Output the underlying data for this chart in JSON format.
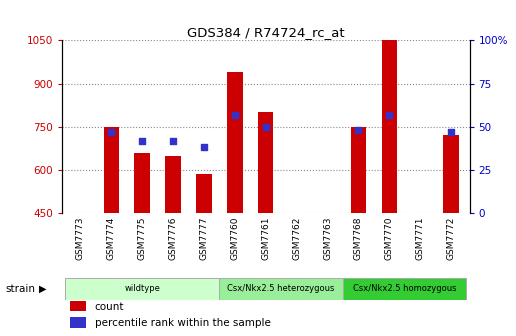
{
  "title": "GDS384 / R74724_rc_at",
  "samples": [
    "GSM7773",
    "GSM7774",
    "GSM7775",
    "GSM7776",
    "GSM7777",
    "GSM7760",
    "GSM7761",
    "GSM7762",
    "GSM7763",
    "GSM7768",
    "GSM7770",
    "GSM7771",
    "GSM7772"
  ],
  "counts": [
    450,
    750,
    660,
    650,
    585,
    940,
    800,
    450,
    450,
    750,
    1050,
    450,
    720
  ],
  "percentiles": [
    null,
    47,
    42,
    42,
    38,
    57,
    50,
    null,
    null,
    48,
    57,
    null,
    47
  ],
  "bar_color": "#cc0000",
  "dot_color": "#3333cc",
  "ylim_left": [
    450,
    1050
  ],
  "ylim_right": [
    0,
    100
  ],
  "yticks_left": [
    450,
    600,
    750,
    900,
    1050
  ],
  "yticks_right": [
    0,
    25,
    50,
    75,
    100
  ],
  "yticklabels_right": [
    "0",
    "25",
    "50",
    "75",
    "100%"
  ],
  "groups": [
    {
      "label": "wildtype",
      "start": 0,
      "end": 5,
      "color": "#ccffcc"
    },
    {
      "label": "Csx/Nkx2.5 heterozygous",
      "start": 5,
      "end": 9,
      "color": "#99ee99"
    },
    {
      "label": "Csx/Nkx2.5 homozygous",
      "start": 9,
      "end": 13,
      "color": "#33cc33"
    }
  ],
  "strain_label": "strain",
  "legend_count_label": "count",
  "legend_pct_label": "percentile rank within the sample",
  "grid_color": "#888888",
  "bg_color": "#ffffff",
  "plot_bg": "#ffffff",
  "left_tick_color": "#cc0000",
  "right_tick_color": "#0000cc",
  "xtick_bg": "#cccccc",
  "bar_width": 0.5,
  "dot_size": 20
}
